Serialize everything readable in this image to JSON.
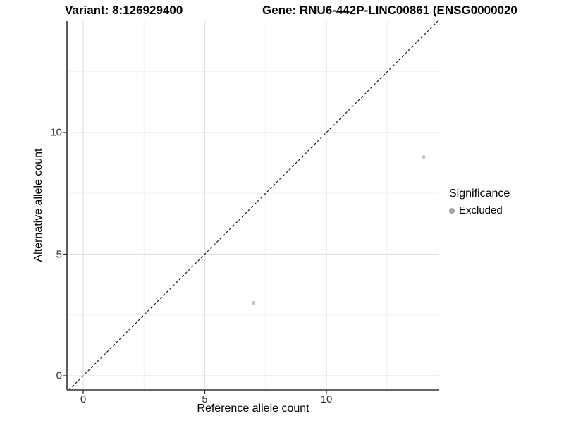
{
  "titles": {
    "variant": "Variant: 8:126929400",
    "gene": "Gene: RNU6-442P-LINC00861 (ENSG0000020"
  },
  "axes": {
    "x_label": "Reference allele count",
    "y_label": "Alternative allele count",
    "x_tick_labels": [
      "0",
      "5",
      "10"
    ],
    "y_tick_labels": [
      "0",
      "5",
      "10"
    ]
  },
  "legend": {
    "title": "Significance",
    "items": [
      {
        "label": "Excluded",
        "key_color": "#a3a3a3"
      }
    ]
  },
  "colors": {
    "point": "#c4c4c4",
    "grid_major": "#e3e3e3",
    "grid_minor": "#f0f0f0",
    "axis_line": "#333333",
    "identity_line": "#111111"
  },
  "chart_data": {
    "type": "scatter",
    "title": "Variant: 8:126929400   Gene: RNU6-442P-LINC00861 (ENSG0000020",
    "xlabel": "Reference allele count",
    "ylabel": "Alternative allele count",
    "x_ticks": [
      0,
      5,
      10
    ],
    "y_ticks": [
      0,
      5,
      10
    ],
    "x_minor_ticks": [
      2.5,
      7.5,
      12.5
    ],
    "y_minor_ticks": [
      2.5,
      7.5,
      12.5
    ],
    "xlim": [
      -0.67,
      14.64
    ],
    "ylim": [
      -0.58,
      14.58
    ],
    "grid": "major+minor",
    "legend_position": "right",
    "reference_line": {
      "type": "identity",
      "slope": 1,
      "intercept": 0,
      "style": "dashed",
      "color": "#111111"
    },
    "series": [
      {
        "name": "Excluded",
        "color": "#c4c4c4",
        "points": [
          {
            "x": 7,
            "y": 3
          },
          {
            "x": 14,
            "y": 9
          }
        ]
      }
    ]
  }
}
